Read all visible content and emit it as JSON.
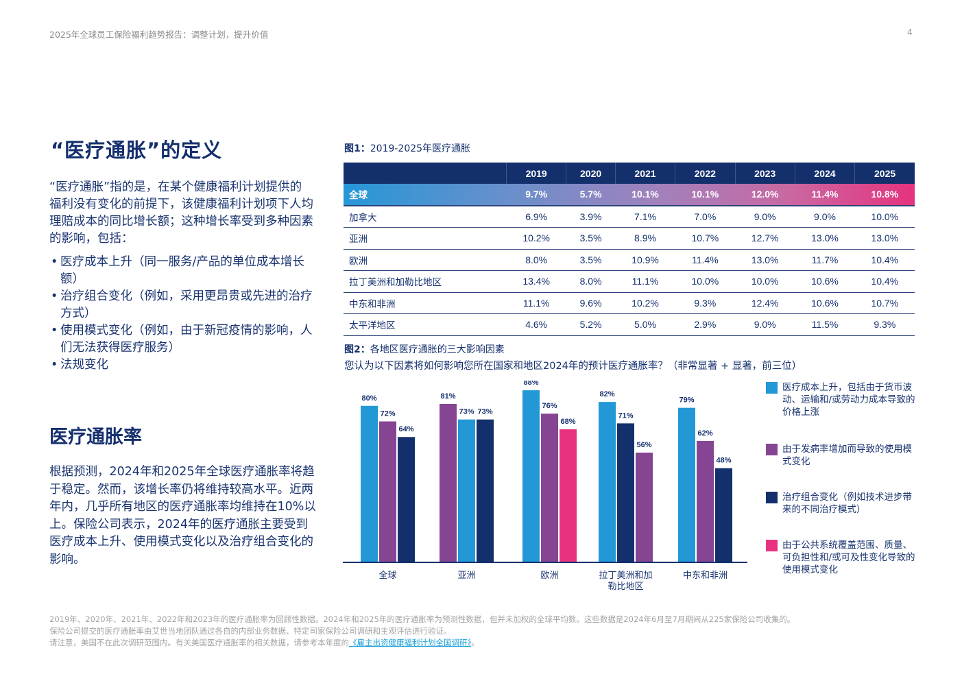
{
  "header": {
    "report_title": "2025年全球员工保险福利趋势报告：调整计划，提升价值",
    "page_number": "4"
  },
  "definition": {
    "heading": "“医疗通胀”的定义",
    "paragraph": "“医疗通胀”指的是，在某个健康福利计划提供的福利没有变化的前提下，该健康福利计划项下人均理赔成本的同比增长额；这种增长率受到多种因素的影响，包括：",
    "bullets": [
      "医疗成本上升（同一服务/产品的单位成本增长额）",
      "治疗组合变化（例如，采用更昂贵或先进的治疗方式）",
      "使用模式变化（例如，由于新冠疫情的影响，人们无法获得医疗服务）",
      "法规变化"
    ]
  },
  "rate_section": {
    "heading": "医疗通胀率",
    "paragraph": "根据预测，2024年和2025年全球医疗通胀率将趋于稳定。然而，该增长率仍将维持较高水平。近两年内，几乎所有地区的医疗通胀率均维持在10%以上。保险公司表示，2024年的医疗通胀主要受到医疗成本上升、使用模式变化以及治疗组合变化的影响。"
  },
  "figure1": {
    "label": "图1：",
    "title": "2019-2025年医疗通胀",
    "years": [
      "2019",
      "2020",
      "2021",
      "2022",
      "2023",
      "2024",
      "2025"
    ],
    "rows": [
      {
        "region": "全球",
        "values": [
          "9.7%",
          "5.7%",
          "10.1%",
          "10.1%",
          "12.0%",
          "11.4%",
          "10.8%"
        ]
      },
      {
        "region": "加拿大",
        "values": [
          "6.9%",
          "3.9%",
          "7.1%",
          "7.0%",
          "9.0%",
          "9.0%",
          "10.0%"
        ]
      },
      {
        "region": "亚洲",
        "values": [
          "10.2%",
          "3.5%",
          "8.9%",
          "10.7%",
          "12.7%",
          "13.0%",
          "13.0%"
        ]
      },
      {
        "region": "欧洲",
        "values": [
          "8.0%",
          "3.5%",
          "10.9%",
          "11.4%",
          "13.0%",
          "11.7%",
          "10.4%"
        ]
      },
      {
        "region": "拉丁美洲和加勒比地区",
        "values": [
          "13.4%",
          "8.0%",
          "11.1%",
          "10.0%",
          "10.0%",
          "10.6%",
          "10.4%"
        ]
      },
      {
        "region": "中东和非洲",
        "values": [
          "11.1%",
          "9.6%",
          "10.2%",
          "9.3%",
          "12.4%",
          "10.6%",
          "10.7%"
        ]
      },
      {
        "region": "太平洋地区",
        "values": [
          "4.6%",
          "5.2%",
          "5.0%",
          "2.9%",
          "9.0%",
          "11.5%",
          "9.3%"
        ]
      }
    ]
  },
  "figure2": {
    "label": "图2：",
    "title": "各地区医疗通胀的三大影响因素",
    "question": "您认为以下因素将如何影响您所在国家和地区2024年的预计医疗通胀率？（非常显著 + 显著，前三位）"
  },
  "chart_data": {
    "type": "bar",
    "title": "各地区医疗通胀的三大影响因素",
    "subtitle": "您认为以下因素将如何影响您所在国家和地区2024年的预计医疗通胀率？（非常显著 + 显著，前三位）",
    "xlabel": "",
    "ylabel": "",
    "ylim": [
      0,
      100
    ],
    "grid": false,
    "legend_position": "right",
    "colors": {
      "cost": "#2398d6",
      "incidence": "#864593",
      "treatment": "#13306c",
      "public": "#e8327f"
    },
    "legend": [
      {
        "key": "cost",
        "label": "医疗成本上升，包括由于货币波动、运输和/或劳动力成本导致的价格上涨"
      },
      {
        "key": "incidence",
        "label": "由于发病率增加而导致的使用模式变化"
      },
      {
        "key": "treatment",
        "label": "治疗组合变化（例如技术进步带来的不同治疗模式）"
      },
      {
        "key": "public",
        "label": "由于公共系统覆盖范围、质量、可负担性和/或可及性变化导致的使用模式变化"
      }
    ],
    "categories": [
      "全球",
      "亚洲",
      "欧洲",
      "拉丁美洲和加勒比地区",
      "中东和非洲"
    ],
    "category_lines": [
      [
        "全球"
      ],
      [
        "亚洲"
      ],
      [
        "欧洲"
      ],
      [
        "拉丁美洲和加",
        "勒比地区"
      ],
      [
        "中东和非洲"
      ]
    ],
    "groups": [
      [
        {
          "key": "cost",
          "value": 80
        },
        {
          "key": "incidence",
          "value": 72
        },
        {
          "key": "treatment",
          "value": 64
        }
      ],
      [
        {
          "key": "incidence",
          "value": 81
        },
        {
          "key": "cost",
          "value": 73
        },
        {
          "key": "treatment",
          "value": 73
        }
      ],
      [
        {
          "key": "cost",
          "value": 88
        },
        {
          "key": "incidence",
          "value": 76
        },
        {
          "key": "public",
          "value": 68
        }
      ],
      [
        {
          "key": "cost",
          "value": 82
        },
        {
          "key": "treatment",
          "value": 71
        },
        {
          "key": "incidence",
          "value": 56
        }
      ],
      [
        {
          "key": "cost",
          "value": 79
        },
        {
          "key": "incidence",
          "value": 62
        },
        {
          "key": "treatment",
          "value": 48
        }
      ]
    ],
    "value_suffix": "%"
  },
  "footnote": {
    "line1": "2019年、2020年、2021年、2022年和2023年的医疗通胀率为回顾性数据。2024年和2025年的医疗通胀率为预测性数据，但并未加权的全球平均数。这些数据是2024年6月至7月期间从225家保险公司收集的。",
    "line2": "保险公司提交的医疗通胀率由艾世当地团队通过各自的内部业务数据、特定司家保险公司调研和主观评估进行验证。",
    "line3_prefix": "请注意，美国不在此次调研范围内。有关美国医疗通胀率的相关数据，请参考本年度的",
    "link_text": "《雇主出资健康福利计划全国调研》",
    "line3_suffix": "。"
  }
}
